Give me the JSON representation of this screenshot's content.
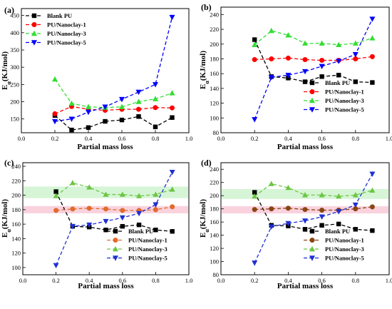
{
  "chart_data": [
    {
      "panel_label": "(a)",
      "type": "line",
      "xlabel": "Partial mass loss",
      "ylabel_main": "E",
      "ylabel_sub": "α",
      "ylabel_unit": "(KJ/mol)",
      "xlim": [
        0.0,
        1.0
      ],
      "ylim": [
        110,
        470
      ],
      "xticks": [
        "0.0",
        "0.2",
        "0.4",
        "0.6",
        "0.8",
        "1.0"
      ],
      "yticks": [
        "150",
        "200",
        "250",
        "300",
        "350",
        "400",
        "450"
      ],
      "xtick_values": [
        0.0,
        0.2,
        0.4,
        0.6,
        0.8,
        1.0
      ],
      "ytick_values": [
        150,
        200,
        250,
        300,
        350,
        400,
        450
      ],
      "legend_position": "top-left",
      "band": null,
      "x": [
        0.2,
        0.3,
        0.4,
        0.5,
        0.6,
        0.7,
        0.8,
        0.9
      ],
      "series": [
        {
          "name": "Blank PU",
          "color": "#000000",
          "marker": "square",
          "values": [
            160,
            118,
            125,
            143,
            147,
            157,
            127,
            154
          ]
        },
        {
          "name": "PU/Nanoclay-1",
          "color": "#ff0000",
          "marker": "circle",
          "values": [
            165,
            186,
            178,
            175,
            178,
            178,
            183,
            182
          ]
        },
        {
          "name": "PU/Nanoclay-3",
          "color": "#33dd33",
          "marker": "triangle-up",
          "values": [
            265,
            195,
            185,
            183,
            185,
            200,
            208,
            225
          ]
        },
        {
          "name": "PU/Nanoclay-5",
          "color": "#0000ff",
          "marker": "triangle-down",
          "values": [
            143,
            150,
            170,
            185,
            207,
            228,
            250,
            445
          ]
        }
      ]
    },
    {
      "panel_label": "(b)",
      "type": "line",
      "xlabel": "Partial mass loss",
      "ylabel_main": "E",
      "ylabel_sub": "α",
      "ylabel_unit": "(KJ/mol)",
      "xlim": [
        0.0,
        1.0
      ],
      "ylim": [
        80,
        250
      ],
      "xticks": [
        "0.0",
        "0.2",
        "0.4",
        "0.6",
        "0.8",
        "1.0"
      ],
      "yticks": [
        "80",
        "100",
        "120",
        "140",
        "160",
        "180",
        "200",
        "220",
        "240"
      ],
      "xtick_values": [
        0.0,
        0.2,
        0.4,
        0.6,
        0.8,
        1.0
      ],
      "ytick_values": [
        80,
        100,
        120,
        140,
        160,
        180,
        200,
        220,
        240
      ],
      "legend_position": "bottom-right",
      "band": null,
      "x": [
        0.2,
        0.3,
        0.4,
        0.5,
        0.6,
        0.7,
        0.8,
        0.9
      ],
      "series": [
        {
          "name": "Blank PU",
          "color": "#000000",
          "marker": "square",
          "values": [
            206,
            156,
            154,
            149,
            156,
            158,
            149,
            148
          ]
        },
        {
          "name": "PU/Nanoclay-1",
          "color": "#ff0000",
          "marker": "circle",
          "values": [
            179,
            180,
            181,
            179,
            178,
            178,
            180,
            183
          ]
        },
        {
          "name": "PU/Nanoclay-3",
          "color": "#33dd33",
          "marker": "triangle-up",
          "values": [
            199,
            218,
            212,
            201,
            201,
            199,
            201,
            208
          ]
        },
        {
          "name": "PU/Nanoclay-5",
          "color": "#0000ff",
          "marker": "triangle-down",
          "values": [
            98,
            155,
            158,
            163,
            170,
            177,
            186,
            234
          ]
        }
      ]
    },
    {
      "panel_label": "(c)",
      "type": "line",
      "xlabel": "Partial mass loss",
      "ylabel_main": "E",
      "ylabel_sub": "α",
      "ylabel_unit": "(KJ/mol)",
      "xlim": [
        0.0,
        1.0
      ],
      "ylim": [
        90,
        245
      ],
      "xticks": [
        "0.0",
        "0.2",
        "0.4",
        "0.6",
        "0.8",
        "1.0"
      ],
      "yticks": [
        "100",
        "120",
        "140",
        "160",
        "180",
        "200",
        "220",
        "240"
      ],
      "xtick_values": [
        0.0,
        0.2,
        0.4,
        0.6,
        0.8,
        1.0
      ],
      "ytick_values": [
        100,
        120,
        140,
        160,
        180,
        200,
        220,
        240
      ],
      "legend_position": "bottom-right",
      "band": {
        "color": "#f7c7d4",
        "y_range": [
          175,
          185
        ],
        "color2": "#ccf2cc",
        "y2_range": [
          196,
          212
        ]
      },
      "x": [
        0.2,
        0.3,
        0.4,
        0.5,
        0.6,
        0.7,
        0.8,
        0.9
      ],
      "series": [
        {
          "name": "Blank PU",
          "color": "#000000",
          "marker": "square",
          "values": [
            205,
            157,
            156,
            152,
            157,
            159,
            152,
            150
          ]
        },
        {
          "name": "PU/Nanoclay-1",
          "color": "#e26a2c",
          "marker": "circle",
          "values": [
            179,
            181,
            182,
            181,
            179,
            179,
            180,
            184
          ]
        },
        {
          "name": "PU/Nanoclay-3",
          "color": "#6cc644",
          "marker": "triangle-up",
          "values": [
            199,
            217,
            211,
            201,
            201,
            199,
            201,
            208
          ]
        },
        {
          "name": "PU/Nanoclay-5",
          "color": "#1f2fd4",
          "marker": "triangle-down",
          "values": [
            103,
            157,
            159,
            164,
            169,
            175,
            187,
            232
          ]
        }
      ]
    },
    {
      "panel_label": "(d)",
      "type": "line",
      "xlabel": "Partial mass loss",
      "ylabel_main": "E",
      "ylabel_sub": "α",
      "ylabel_unit": "(KJ/mol)",
      "xlim": [
        0.0,
        1.0
      ],
      "ylim": [
        80,
        250
      ],
      "xticks": [
        "0.0",
        "0.2",
        "0.4",
        "0.6",
        "0.8",
        "1.0"
      ],
      "yticks": [
        "80",
        "100",
        "120",
        "140",
        "160",
        "180",
        "200",
        "220",
        "240"
      ],
      "xtick_values": [
        0.0,
        0.2,
        0.4,
        0.6,
        0.8,
        1.0
      ],
      "ytick_values": [
        80,
        100,
        120,
        140,
        160,
        180,
        200,
        220,
        240
      ],
      "legend_position": "bottom-right",
      "band": {
        "color": "#f7c7d4",
        "y_range": [
          173,
          184
        ],
        "color2": "#ccf2cc",
        "y2_range": [
          195,
          210
        ]
      },
      "x": [
        0.2,
        0.3,
        0.4,
        0.5,
        0.6,
        0.7,
        0.8,
        0.9
      ],
      "series": [
        {
          "name": "Blank PU",
          "color": "#000000",
          "marker": "square",
          "values": [
            205,
            155,
            154,
            149,
            155,
            157,
            149,
            147
          ]
        },
        {
          "name": "PU/Nanoclay-1",
          "color": "#8b4513",
          "marker": "circle",
          "values": [
            179,
            180,
            181,
            179,
            178,
            178,
            180,
            183
          ]
        },
        {
          "name": "PU/Nanoclay-3",
          "color": "#6cc644",
          "marker": "triangle-up",
          "values": [
            199,
            218,
            212,
            201,
            201,
            199,
            201,
            208
          ]
        },
        {
          "name": "PU/Nanoclay-5",
          "color": "#1f2fd4",
          "marker": "triangle-down",
          "values": [
            98,
            153,
            158,
            162,
            168,
            176,
            186,
            233
          ]
        }
      ]
    }
  ]
}
